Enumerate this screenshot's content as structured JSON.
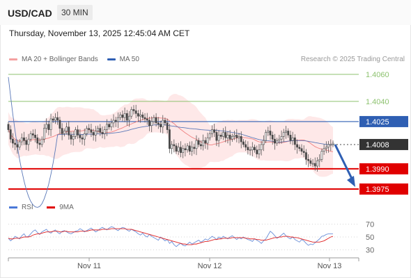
{
  "header": {
    "symbol": "USD/CAD",
    "interval": "30 MIN"
  },
  "timestamp": "Thursday, November 13, 2025 12:45:04 AM CET",
  "legend": {
    "ma20_label": "MA 20 + Bollinger Bands",
    "ma50_label": "MA 50",
    "credit": "Research © 2025 Trading Central"
  },
  "rsi_legend": {
    "rsi_label": "RSI",
    "ma_label": "9MA"
  },
  "colors": {
    "bullish_candle": "#4a4a4a",
    "bearish_candle": "#4a4a4a",
    "bollinger_fill": "#fde0e0",
    "ma20": "#f08080",
    "ma50": "#5a78b8",
    "target_green": "#8dc26f",
    "pivot_blue": "#2f5fb3",
    "support_red": "#e00000",
    "rsi_line": "#6a8fd8",
    "rsi_ma": "#e02020"
  },
  "chart_data": [
    {
      "type": "candlestick",
      "title": "USD/CAD 30 MIN",
      "ylim": [
        1.3966,
        1.4068
      ],
      "x_ticks": [
        "Nov 11",
        "Nov 12",
        "Nov 13"
      ],
      "levels": [
        {
          "value": 1.406,
          "label": "1.4060",
          "kind": "resistance-target"
        },
        {
          "value": 1.404,
          "label": "1.4040",
          "kind": "resistance-target"
        },
        {
          "value": 1.4025,
          "label": "1.4025",
          "kind": "pivot"
        },
        {
          "value": 1.4008,
          "label": "1.4008",
          "kind": "last-price"
        },
        {
          "value": 1.399,
          "label": "1.3990",
          "kind": "support"
        },
        {
          "value": 1.3975,
          "label": "1.3975",
          "kind": "support"
        }
      ],
      "close": [
        1.4019,
        1.4012,
        1.4009,
        1.4008,
        1.4006,
        1.401,
        1.4013,
        1.4011,
        1.4008,
        1.4012,
        1.4016,
        1.4015,
        1.4013,
        1.4009,
        1.4008,
        1.4012,
        1.402,
        1.4023,
        1.4019,
        1.4027,
        1.4026,
        1.4028,
        1.4026,
        1.402,
        1.4016,
        1.4018,
        1.4021,
        1.4015,
        1.4012,
        1.4014,
        1.4019,
        1.4015,
        1.4013,
        1.4012,
        1.4016,
        1.402,
        1.4019,
        1.4017,
        1.4015,
        1.4018,
        1.402,
        1.4017,
        1.4016,
        1.4019,
        1.4023,
        1.4021,
        1.4024,
        1.4026,
        1.4025,
        1.4028,
        1.403,
        1.4028,
        1.4031,
        1.4026,
        1.4029,
        1.4034,
        1.4033,
        1.4031,
        1.4029,
        1.403,
        1.4028,
        1.4027,
        1.4026,
        1.4022,
        1.4025,
        1.4028,
        1.4024,
        1.4023,
        1.4021,
        1.4026,
        1.4024,
        1.4019,
        1.4005,
        1.4008,
        1.4007,
        1.4003,
        1.4006,
        1.4002,
        1.4005,
        1.4004,
        1.4007,
        1.4003,
        1.4006,
        1.4005,
        1.4011,
        1.4008,
        1.4007,
        1.4011,
        1.4009,
        1.4013,
        1.4016,
        1.4019,
        1.4017,
        1.4011,
        1.4015,
        1.4014,
        1.4017,
        1.4013,
        1.4015,
        1.4012,
        1.4014,
        1.4015,
        1.4013,
        1.4014,
        1.401,
        1.4008,
        1.4006,
        1.4004,
        1.4004,
        1.4006,
        1.4004,
        1.4001,
        1.4004,
        1.4008,
        1.4011,
        1.4017,
        1.4018,
        1.4015,
        1.4012,
        1.4009,
        1.4011,
        1.4012,
        1.4014,
        1.4017,
        1.4018,
        1.4015,
        1.4011,
        1.4013,
        1.4008,
        1.4006,
        1.4005,
        1.4003,
        1.4002,
        1.3997,
        1.3996,
        1.3994,
        1.3994,
        1.3992,
        1.3996,
        1.3997,
        1.4003,
        1.4005,
        1.4006,
        1.4008,
        1.4008,
        1.4009
      ]
    },
    {
      "type": "line",
      "title": "",
      "ylim": [
        25,
        75
      ],
      "y_ticks": [
        30,
        50,
        70
      ],
      "series": [
        {
          "name": "RSI",
          "values": [
            48,
            44,
            47,
            51,
            49,
            47,
            52,
            55,
            50,
            51,
            55,
            59,
            61,
            57,
            54,
            58,
            60,
            62,
            58,
            56,
            59,
            61,
            57,
            55,
            59,
            60,
            58,
            56,
            55,
            57,
            59,
            60,
            63,
            61,
            58,
            60,
            62,
            64,
            61,
            58,
            60,
            63,
            65,
            63,
            61,
            64,
            66,
            65,
            62,
            60,
            63,
            65,
            64,
            61,
            59,
            62,
            60,
            58,
            55,
            53,
            56,
            52,
            50,
            54,
            51,
            49,
            47,
            45,
            50,
            47,
            44,
            46,
            40,
            43,
            38,
            35,
            38,
            40,
            37,
            36,
            39,
            42,
            39,
            41,
            43,
            45,
            42,
            44,
            47,
            45,
            48,
            51,
            49,
            46,
            50,
            48,
            51,
            49,
            47,
            50,
            52,
            49,
            46,
            49,
            47,
            50,
            48,
            46,
            45,
            43,
            47,
            45,
            43,
            40,
            44,
            47,
            53,
            59,
            56,
            52,
            48,
            50,
            53,
            56,
            52,
            49,
            47,
            50,
            46,
            44,
            42,
            46,
            44,
            40,
            37,
            39,
            38,
            41,
            44,
            47,
            51,
            52,
            54,
            55,
            55,
            55
          ]
        },
        {
          "name": "9MA",
          "values": [
            48,
            47,
            47,
            48,
            48,
            48,
            49,
            50,
            50,
            50,
            51,
            53,
            54,
            55,
            55,
            56,
            57,
            58,
            58,
            58,
            59,
            59,
            59,
            58,
            58,
            59,
            59,
            58,
            58,
            58,
            58,
            58,
            59,
            59,
            59,
            59,
            60,
            61,
            61,
            61,
            61,
            61,
            62,
            62,
            62,
            62,
            63,
            63,
            63,
            63,
            63,
            63,
            63,
            62,
            62,
            62,
            61,
            60,
            59,
            58,
            57,
            56,
            55,
            54,
            53,
            52,
            51,
            50,
            49,
            48,
            47,
            46,
            45,
            44,
            43,
            42,
            41,
            40,
            39,
            39,
            38,
            38,
            38,
            39,
            39,
            40,
            41,
            42,
            43,
            43,
            44,
            45,
            46,
            46,
            47,
            47,
            48,
            48,
            48,
            48,
            49,
            49,
            49,
            49,
            49,
            49,
            48,
            48,
            47,
            47,
            47,
            46,
            46,
            45,
            45,
            45,
            46,
            47,
            48,
            49,
            49,
            50,
            50,
            51,
            51,
            51,
            50,
            50,
            49,
            49,
            48,
            47,
            46,
            45,
            44,
            43,
            42,
            42,
            42,
            42,
            43,
            44,
            46,
            48,
            50,
            51
          ]
        }
      ]
    }
  ]
}
